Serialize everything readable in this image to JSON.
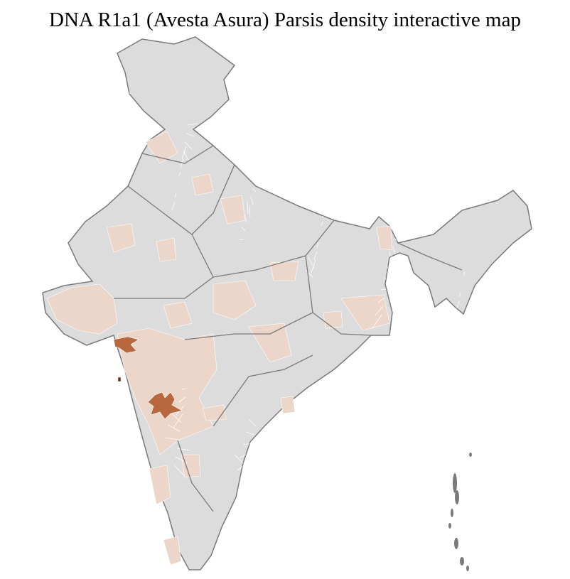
{
  "title": "DNA R1a1 (Avesta Asura) Parsis density interactive map",
  "colors": {
    "background": "#ffffff",
    "no_data": "#dcdcdc",
    "low_density": "#ecd5c9",
    "medium_density": "#b8683f",
    "high_density": "#6b2a12",
    "district_border": "#ffffff",
    "state_border": "#7a7a7a"
  }
}
